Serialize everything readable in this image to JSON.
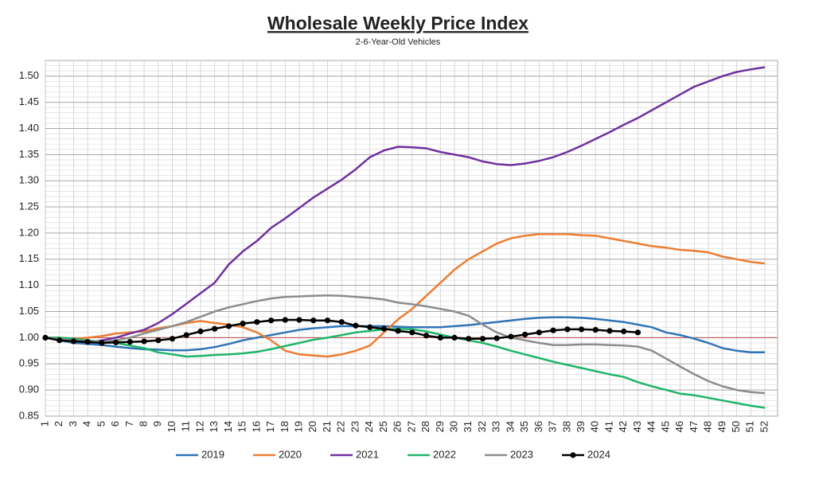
{
  "chart_data": {
    "type": "line",
    "title": "Wholesale Weekly Price Index",
    "subtitle": "2-6-Year-Old Vehicles",
    "categories": [
      "1",
      "2",
      "3",
      "4",
      "5",
      "6",
      "7",
      "8",
      "9",
      "10",
      "11",
      "12",
      "13",
      "14",
      "15",
      "16",
      "17",
      "18",
      "19",
      "20",
      "21",
      "22",
      "23",
      "24",
      "25",
      "26",
      "27",
      "28",
      "29",
      "30",
      "31",
      "32",
      "33",
      "34",
      "35",
      "36",
      "37",
      "38",
      "39",
      "40",
      "41",
      "42",
      "43",
      "44",
      "45",
      "46",
      "47",
      "48",
      "49",
      "50",
      "51",
      "52"
    ],
    "ylim": [
      0.85,
      1.53
    ],
    "yticks": [
      0.85,
      {
        "value": 0.9,
        "label": "0.90"
      },
      0.95,
      {
        "value": 1.0,
        "label": "1.00"
      },
      1.05,
      {
        "value": 1.1,
        "label": "1.10"
      },
      1.15,
      {
        "value": 1.2,
        "label": "1.20"
      },
      1.25,
      {
        "value": 1.3,
        "label": "1.30"
      },
      1.35,
      {
        "value": 1.4,
        "label": "1.40"
      },
      1.45,
      {
        "value": 1.5,
        "label": "1.50"
      }
    ],
    "grid": true,
    "reference_line": {
      "value": 1.0,
      "color": "#c0504d"
    },
    "legend": "bottom",
    "series": [
      {
        "name": "2019",
        "color": "#2e75b6",
        "values": [
          1.0,
          0.995,
          0.99,
          0.988,
          0.986,
          0.983,
          0.98,
          0.978,
          0.977,
          0.976,
          0.976,
          0.978,
          0.982,
          0.988,
          0.995,
          1.0,
          1.005,
          1.01,
          1.015,
          1.018,
          1.02,
          1.022,
          1.022,
          1.022,
          1.022,
          1.021,
          1.02,
          1.02,
          1.02,
          1.022,
          1.024,
          1.027,
          1.03,
          1.033,
          1.036,
          1.038,
          1.039,
          1.039,
          1.038,
          1.036,
          1.033,
          1.03,
          1.025,
          1.02,
          1.01,
          1.005,
          0.998,
          0.99,
          0.98,
          0.975,
          0.972,
          0.972
        ]
      },
      {
        "name": "2020",
        "color": "#ed7d31",
        "values": [
          1.0,
          1.0,
          0.998,
          1.0,
          1.003,
          1.008,
          1.01,
          1.012,
          1.018,
          1.022,
          1.028,
          1.032,
          1.028,
          1.025,
          1.02,
          1.01,
          0.995,
          0.975,
          0.968,
          0.966,
          0.964,
          0.968,
          0.975,
          0.985,
          1.01,
          1.035,
          1.055,
          1.08,
          1.105,
          1.13,
          1.15,
          1.165,
          1.18,
          1.19,
          1.195,
          1.198,
          1.198,
          1.198,
          1.196,
          1.195,
          1.19,
          1.185,
          1.18,
          1.175,
          1.172,
          1.168,
          1.166,
          1.163,
          1.155,
          1.15,
          1.145,
          1.142
        ]
      },
      {
        "name": "2021",
        "color": "#7030a0",
        "values": [
          1.0,
          1.0,
          0.995,
          0.99,
          0.995,
          1.0,
          1.008,
          1.015,
          1.028,
          1.045,
          1.065,
          1.085,
          1.105,
          1.14,
          1.165,
          1.185,
          1.21,
          1.228,
          1.248,
          1.268,
          1.285,
          1.302,
          1.322,
          1.345,
          1.358,
          1.365,
          1.364,
          1.362,
          1.355,
          1.35,
          1.345,
          1.337,
          1.332,
          1.33,
          1.333,
          1.338,
          1.345,
          1.355,
          1.367,
          1.38,
          1.393,
          1.407,
          1.42,
          1.435,
          1.45,
          1.465,
          1.48,
          1.49,
          1.5,
          1.508,
          1.513,
          1.517
        ]
      },
      {
        "name": "2022",
        "color": "#1fb56a",
        "values": [
          1.0,
          1.0,
          0.998,
          0.995,
          0.992,
          0.99,
          0.985,
          0.98,
          0.972,
          0.968,
          0.964,
          0.965,
          0.967,
          0.968,
          0.97,
          0.973,
          0.978,
          0.984,
          0.99,
          0.996,
          1.0,
          1.005,
          1.01,
          1.013,
          1.016,
          1.017,
          1.016,
          1.012,
          1.006,
          1.0,
          0.995,
          0.99,
          0.983,
          0.975,
          0.968,
          0.961,
          0.954,
          0.948,
          0.942,
          0.936,
          0.93,
          0.925,
          0.915,
          0.907,
          0.9,
          0.893,
          0.89,
          0.885,
          0.88,
          0.875,
          0.87,
          0.866
        ]
      },
      {
        "name": "2023",
        "color": "#8c8c8c",
        "values": [
          1.0,
          0.997,
          0.995,
          0.993,
          0.992,
          0.995,
          1.0,
          1.008,
          1.015,
          1.022,
          1.03,
          1.04,
          1.05,
          1.058,
          1.064,
          1.07,
          1.075,
          1.078,
          1.079,
          1.08,
          1.081,
          1.08,
          1.078,
          1.076,
          1.073,
          1.067,
          1.064,
          1.06,
          1.055,
          1.05,
          1.042,
          1.025,
          1.01,
          1.0,
          0.995,
          0.99,
          0.986,
          0.986,
          0.987,
          0.987,
          0.986,
          0.985,
          0.983,
          0.975,
          0.96,
          0.945,
          0.93,
          0.917,
          0.907,
          0.9,
          0.896,
          0.894
        ]
      },
      {
        "name": "2024",
        "color": "#000000",
        "markers": true,
        "values": [
          1.0,
          0.995,
          0.993,
          0.992,
          0.99,
          0.991,
          0.992,
          0.993,
          0.995,
          0.998,
          1.005,
          1.012,
          1.017,
          1.022,
          1.027,
          1.03,
          1.033,
          1.034,
          1.034,
          1.033,
          1.033,
          1.03,
          1.023,
          1.02,
          1.017,
          1.013,
          1.01,
          1.004,
          1.0,
          1.0,
          0.998,
          0.998,
          0.999,
          1.002,
          1.006,
          1.01,
          1.014,
          1.016,
          1.016,
          1.015,
          1.013,
          1.012,
          1.01,
          null,
          null,
          null,
          null,
          null,
          null,
          null,
          null,
          null
        ]
      }
    ]
  }
}
